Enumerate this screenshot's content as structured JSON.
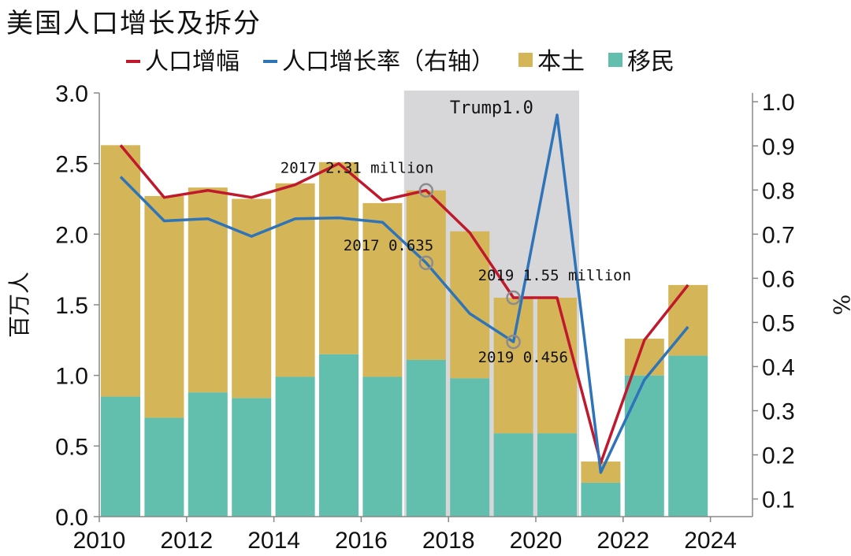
{
  "chart_data": {
    "type": "bar+line",
    "title": "美国人口增长及拆分",
    "categories": [
      "2010",
      "2011",
      "2012",
      "2013",
      "2014",
      "2015",
      "2016",
      "2017",
      "2018",
      "2019",
      "2020",
      "2021",
      "2022",
      "2023"
    ],
    "x_tick_labels": [
      "2010",
      "2012",
      "2014",
      "2016",
      "2018",
      "2020",
      "2022",
      "2024"
    ],
    "stacked_bars": [
      {
        "name": "移民",
        "color": "#62bfad",
        "values": [
          0.85,
          0.7,
          0.88,
          0.84,
          0.99,
          1.15,
          0.99,
          1.11,
          0.98,
          0.59,
          0.59,
          0.24,
          1.0,
          1.14
        ]
      },
      {
        "name": "本土",
        "color": "#d4b659",
        "values": [
          1.78,
          1.57,
          1.45,
          1.41,
          1.37,
          1.36,
          1.23,
          1.2,
          1.04,
          0.96,
          0.96,
          0.15,
          0.26,
          0.5
        ]
      }
    ],
    "lines": [
      {
        "name": "人口增幅",
        "color": "#c0182c",
        "axis": "left",
        "values": [
          2.63,
          2.26,
          2.31,
          2.26,
          2.35,
          2.5,
          2.24,
          2.31,
          2.01,
          1.55,
          1.55,
          0.38,
          1.25,
          1.64
        ]
      },
      {
        "name": "人口增长率（右轴）",
        "color": "#2f74b9",
        "axis": "right",
        "values": [
          0.83,
          0.73,
          0.735,
          0.695,
          0.735,
          0.737,
          0.727,
          0.635,
          0.52,
          0.456,
          0.97,
          0.16,
          0.37,
          0.49
        ]
      }
    ],
    "legend": [
      "人口增幅",
      "人口增长率（右轴）",
      "本土",
      "移民"
    ],
    "ylabel_left": "百万人",
    "ylabel_right": "%",
    "ylim_left": [
      0,
      3.0
    ],
    "yticks_left": [
      "0.0",
      "0.5",
      "1.0",
      "1.5",
      "2.0",
      "2.5",
      "3.0"
    ],
    "ylim_right": [
      0.06,
      1.02
    ],
    "yticks_right": [
      "0.1",
      "0.2",
      "0.3",
      "0.4",
      "0.5",
      "0.6",
      "0.7",
      "0.8",
      "0.9",
      "1.0"
    ],
    "shaded_region": {
      "label": "Trump1.0",
      "from_index": 7,
      "to_index": 10
    },
    "annotations": [
      {
        "text": "2017 2.31 million",
        "series": "人口增幅",
        "index": 7,
        "value": 2.31
      },
      {
        "text": "2017 0.635",
        "series": "人口增长率（右轴）",
        "index": 7,
        "value": 0.635
      },
      {
        "text": "2019 1.55 million",
        "series": "人口增幅",
        "index": 9,
        "value": 1.55
      },
      {
        "text": "2019 0.456",
        "series": "人口增长率（右轴）",
        "index": 9,
        "value": 0.456
      }
    ]
  }
}
